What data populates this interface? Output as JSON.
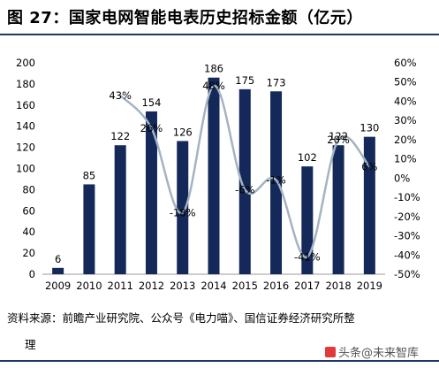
{
  "figure": {
    "title": "图 27：国家电网智能电表历史招标金额（亿元）",
    "source_line1": "资料来源：前瞻产业研究院、公众号《电力喵》、国信证券经济研究所整",
    "source_line2": "理",
    "watermark": "头条@未来智库"
  },
  "chart_data": {
    "type": "bar",
    "categories": [
      "2009",
      "2010",
      "2011",
      "2012",
      "2013",
      "2014",
      "2015",
      "2016",
      "2017",
      "2018",
      "2019"
    ],
    "series": [
      {
        "type": "bar",
        "axis": "left",
        "values": [
          6,
          85,
          122,
          154,
          126,
          186,
          175,
          173,
          102,
          122,
          130
        ],
        "labels": [
          "6",
          "85",
          "122",
          "154",
          "126",
          "186",
          "175",
          "173",
          "102",
          "122",
          "130"
        ],
        "color": "#14295a"
      },
      {
        "type": "line",
        "axis": "right",
        "smooth": true,
        "values": [
          null,
          null,
          43,
          26,
          -18,
          48,
          -6,
          -1,
          -41,
          20,
          6
        ],
        "labels": [
          "",
          "",
          "43%",
          "26%",
          "-18%",
          "48%",
          "-6%",
          "-1%",
          "-41%",
          "20%",
          "6%"
        ],
        "color": "#a5b3c2"
      }
    ],
    "yLeft": {
      "min": 0,
      "max": 200,
      "step": 20,
      "ticks": [
        "0",
        "20",
        "40",
        "60",
        "80",
        "100",
        "120",
        "140",
        "160",
        "180",
        "200"
      ]
    },
    "yRight": {
      "min": -50,
      "max": 60,
      "step": 10,
      "ticks": [
        "-50%",
        "-40%",
        "-30%",
        "-20%",
        "-10%",
        "0%",
        "10%",
        "20%",
        "30%",
        "40%",
        "50%",
        "60%"
      ]
    },
    "xlabel": "",
    "ylabel": "",
    "grid": false,
    "legend": "none"
  }
}
